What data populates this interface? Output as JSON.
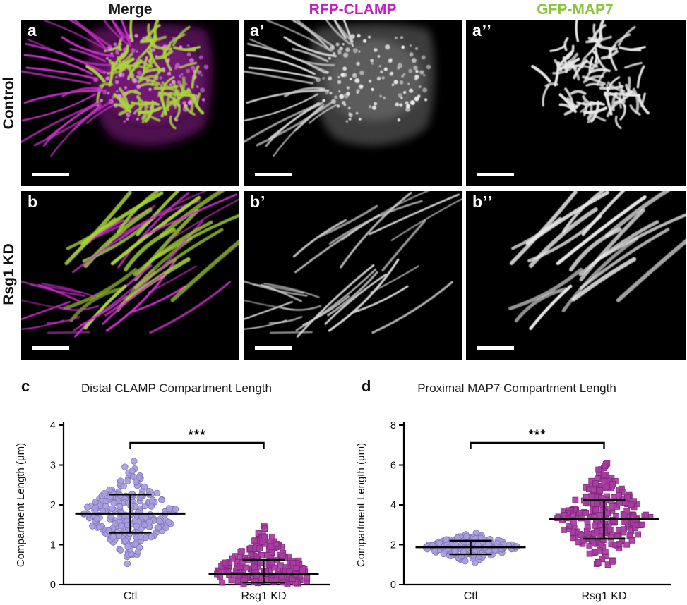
{
  "figure": {
    "column_headers": [
      {
        "label": "Merge",
        "color": "#1a1a1a"
      },
      {
        "label": "RFP-CLAMP",
        "color": "#c320c3"
      },
      {
        "label": "GFP-MAP7",
        "color": "#8ac43c"
      }
    ],
    "row_labels": [
      "Control",
      "Rsg1 KD"
    ],
    "panel_letters": [
      "a",
      "a’",
      "a’’",
      "b",
      "b’",
      "b’’"
    ]
  },
  "micrographs": {
    "background": "#000000",
    "rfp_color": "#cb30cb",
    "gfp_color": "#a9d438",
    "grayscale": "#d2d2d2",
    "scale_bar_color": "#ffffff"
  },
  "chart_data": [
    {
      "type": "scatter",
      "panel": "c",
      "title": "Distal CLAMP Compartment Length",
      "ylabel": "Compartment Length (μm)",
      "ylim": [
        0,
        4
      ],
      "yticks": [
        0,
        1,
        2,
        3,
        4
      ],
      "categories": [
        "Ctl",
        "Rsg1 KD"
      ],
      "significance": "***",
      "groups": [
        {
          "name": "Ctl",
          "marker": "circle",
          "color": "#a89ddd",
          "edge": "#7f74b8",
          "n": 260,
          "median": 1.78,
          "sd": 0.47,
          "min": 0.5,
          "max": 3.25,
          "err_low": 1.3,
          "err_high": 2.26
        },
        {
          "name": "Rsg1 KD",
          "marker": "square",
          "color": "#a93ba3",
          "edge": "#7c2a78",
          "n": 205,
          "median": 0.27,
          "sd": 0.45,
          "min": 0.01,
          "max": 1.85,
          "err_low": 0.05,
          "err_high": 0.62
        }
      ]
    },
    {
      "type": "scatter",
      "panel": "d",
      "title": "Proximal MAP7 Compartment Length",
      "ylabel": "Compartment Length (μm)",
      "ylim": [
        0,
        8
      ],
      "yticks": [
        0,
        2,
        4,
        6,
        8
      ],
      "categories": [
        "Ctl",
        "Rsg1 KD"
      ],
      "significance": "***",
      "groups": [
        {
          "name": "Ctl",
          "marker": "circle",
          "color": "#a89ddd",
          "edge": "#7f74b8",
          "n": 190,
          "median": 1.88,
          "sd": 0.32,
          "min": 1.05,
          "max": 2.9,
          "err_low": 1.52,
          "err_high": 2.2
        },
        {
          "name": "Rsg1 KD",
          "marker": "square",
          "color": "#a93ba3",
          "edge": "#7c2a78",
          "n": 240,
          "median": 3.3,
          "sd": 1.05,
          "min": 1.0,
          "max": 6.85,
          "err_low": 2.3,
          "err_high": 4.25
        }
      ]
    }
  ]
}
